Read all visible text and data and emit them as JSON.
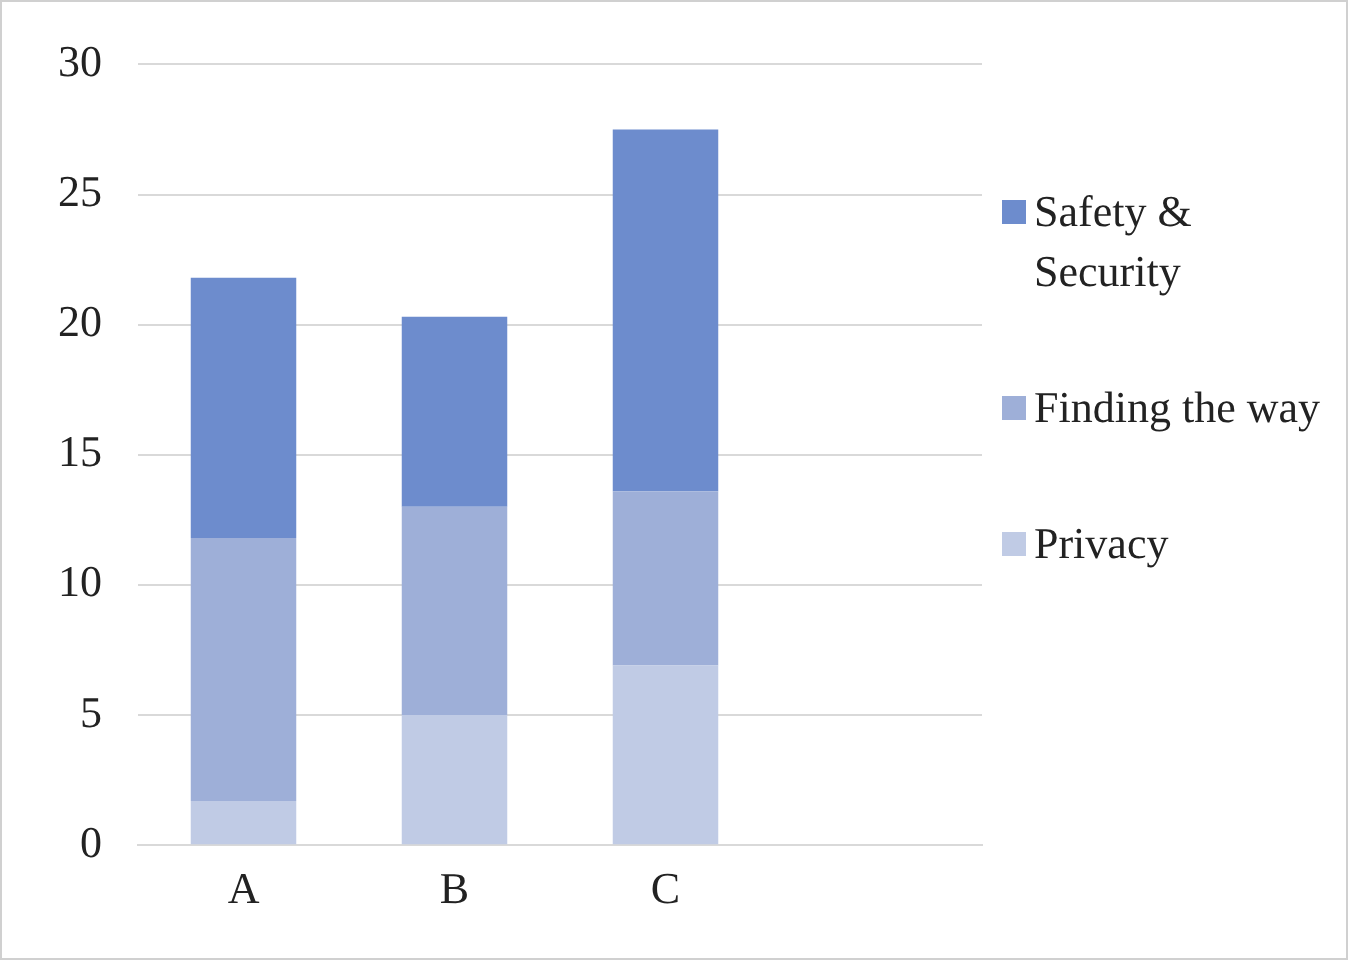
{
  "chart_data": {
    "type": "bar",
    "stacked": true,
    "categories": [
      "A",
      "B",
      "C"
    ],
    "series": [
      {
        "name": "Privacy",
        "color": "#c0cbe5",
        "values": [
          1.7,
          5.0,
          6.9
        ]
      },
      {
        "name": "Finding the way",
        "color": "#9eafd8",
        "values": [
          10.1,
          8.0,
          6.7
        ]
      },
      {
        "name": "Safety & Security",
        "color": "#6d8ccd",
        "values": [
          10.0,
          7.3,
          13.9
        ]
      }
    ],
    "ylim": [
      0,
      30
    ],
    "yticks": [
      0,
      5,
      10,
      15,
      20,
      25,
      30
    ],
    "grid": "y",
    "legend": "right"
  }
}
